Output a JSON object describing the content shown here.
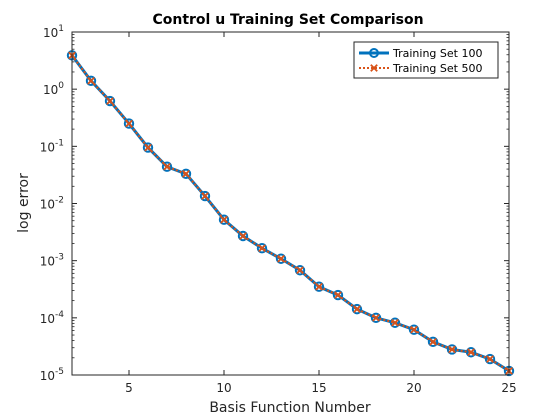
{
  "chart_data": {
    "type": "line",
    "title": "Control u Training Set Comparison",
    "xlabel": "Basis Function Number",
    "ylabel": "log error",
    "xlim": [
      2,
      25
    ],
    "ylim": [
      1e-05,
      10
    ],
    "yscale": "log",
    "grid": false,
    "legend_position": "top-right",
    "x_ticks": [
      5,
      10,
      15,
      20,
      25
    ],
    "y_ticks": [
      {
        "value": 1e-05,
        "base": "10",
        "exp": "-5"
      },
      {
        "value": 0.0001,
        "base": "10",
        "exp": "-4"
      },
      {
        "value": 0.001,
        "base": "10",
        "exp": "-3"
      },
      {
        "value": 0.01,
        "base": "10",
        "exp": "-2"
      },
      {
        "value": 0.1,
        "base": "10",
        "exp": "-1"
      },
      {
        "value": 1,
        "base": "10",
        "exp": "0"
      },
      {
        "value": 10,
        "base": "10",
        "exp": "1"
      }
    ],
    "x": [
      2,
      3,
      4,
      5,
      6,
      7,
      8,
      9,
      10,
      11,
      12,
      13,
      14,
      15,
      16,
      17,
      18,
      19,
      20,
      21,
      22,
      23,
      24,
      25
    ],
    "series": [
      {
        "name": "Training Set 100",
        "color": "#0072BD",
        "marker": "circle",
        "line_style": "solid",
        "values": [
          3.9,
          1.4,
          0.62,
          0.25,
          0.095,
          0.044,
          0.033,
          0.0135,
          0.0052,
          0.0027,
          0.00165,
          0.00108,
          0.00068,
          0.00035,
          0.00025,
          0.000142,
          0.0001,
          8.2e-05,
          6.2e-05,
          3.8e-05,
          2.8e-05,
          2.5e-05,
          1.9e-05,
          1.18e-05
        ]
      },
      {
        "name": "Training Set 500",
        "color": "#D95319",
        "marker": "x",
        "line_style": "dotted",
        "values": [
          3.9,
          1.4,
          0.62,
          0.25,
          0.095,
          0.044,
          0.033,
          0.0135,
          0.0052,
          0.0027,
          0.00165,
          0.00108,
          0.00068,
          0.00035,
          0.00025,
          0.000142,
          0.0001,
          8.2e-05,
          6.2e-05,
          3.8e-05,
          2.8e-05,
          2.5e-05,
          1.9e-05,
          1.18e-05
        ]
      }
    ]
  }
}
